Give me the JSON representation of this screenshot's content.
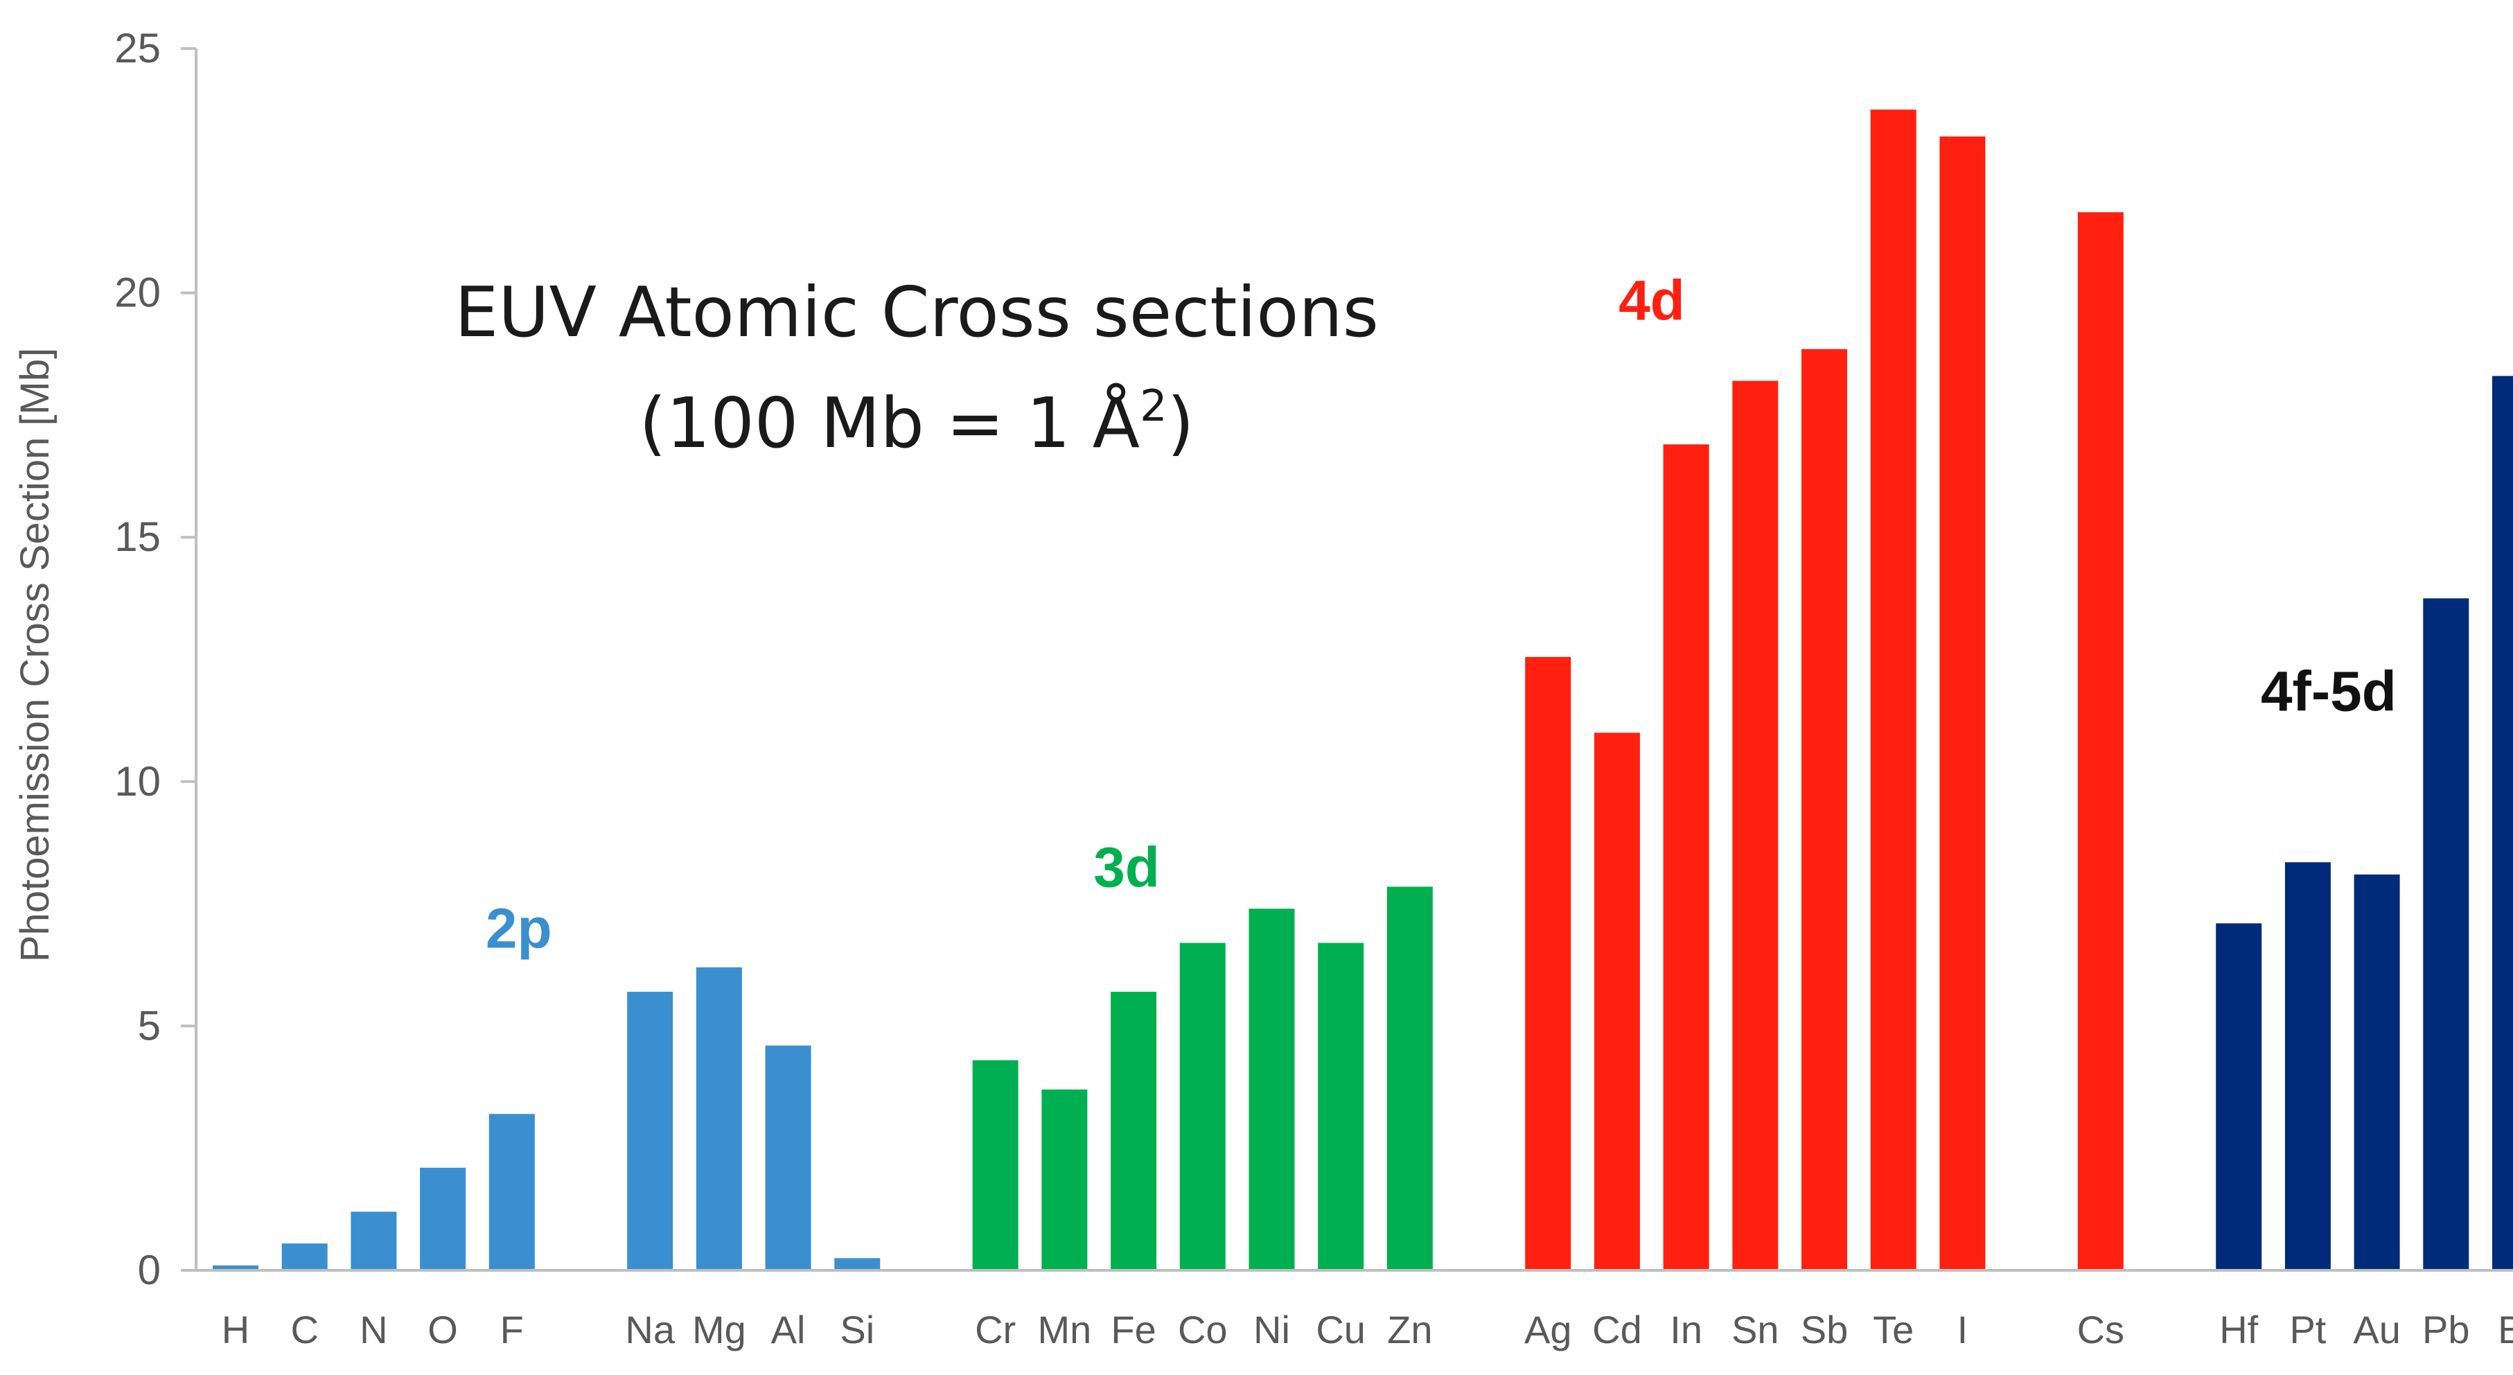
{
  "chart_data": {
    "type": "bar",
    "title_line1": "EUV Atomic Cross sections",
    "title_line2_prefix": "(100 Mb = 1 Å",
    "title_line2_sup": "2",
    "title_line2_suffix": ")",
    "ylabel": "Photoemission Cross  Section [Mb]",
    "xlabel": "",
    "ylim": [
      0,
      25
    ],
    "yticks": [
      "0",
      "5",
      "10",
      "15",
      "20",
      "25"
    ],
    "grid": false,
    "categories": [
      "H",
      "C",
      "N",
      "O",
      "F",
      "",
      "Na",
      "Mg",
      "Al",
      "Si",
      "",
      "Cr",
      "Mn",
      "Fe",
      "Co",
      "Ni",
      "Cu",
      "Zn",
      "",
      "Ag",
      "Cd",
      "In",
      "Sn",
      "Sb",
      "Te",
      "I",
      "",
      "Cs",
      "",
      "Hf",
      "Pt",
      "Au",
      "Pb",
      "Bi"
    ],
    "values": [
      0.1,
      0.55,
      1.2,
      2.1,
      3.2,
      null,
      5.7,
      6.2,
      4.6,
      0.25,
      null,
      4.3,
      3.7,
      5.7,
      6.7,
      7.4,
      6.7,
      7.85,
      null,
      12.55,
      11.0,
      16.9,
      18.2,
      18.85,
      23.75,
      23.2,
      null,
      21.65,
      null,
      7.1,
      8.35,
      8.1,
      13.75,
      18.3
    ],
    "groups": [
      {
        "label": "2p",
        "color": "#3a8fd0",
        "members": [
          "H",
          "C",
          "N",
          "O",
          "F",
          "Na",
          "Mg",
          "Al",
          "Si"
        ]
      },
      {
        "label": "3d",
        "color": "#00b050",
        "members": [
          "Cr",
          "Mn",
          "Fe",
          "Co",
          "Ni",
          "Cu",
          "Zn"
        ]
      },
      {
        "label": "4d",
        "color": "#ff2010",
        "members": [
          "Ag",
          "Cd",
          "In",
          "Sn",
          "Sb",
          "Te",
          "I",
          "Cs"
        ]
      },
      {
        "label": "4f-5d",
        "color": "#002b7a",
        "label_color": "#111111",
        "members": [
          "Hf",
          "Pt",
          "Au",
          "Pb",
          "Bi"
        ]
      }
    ]
  }
}
